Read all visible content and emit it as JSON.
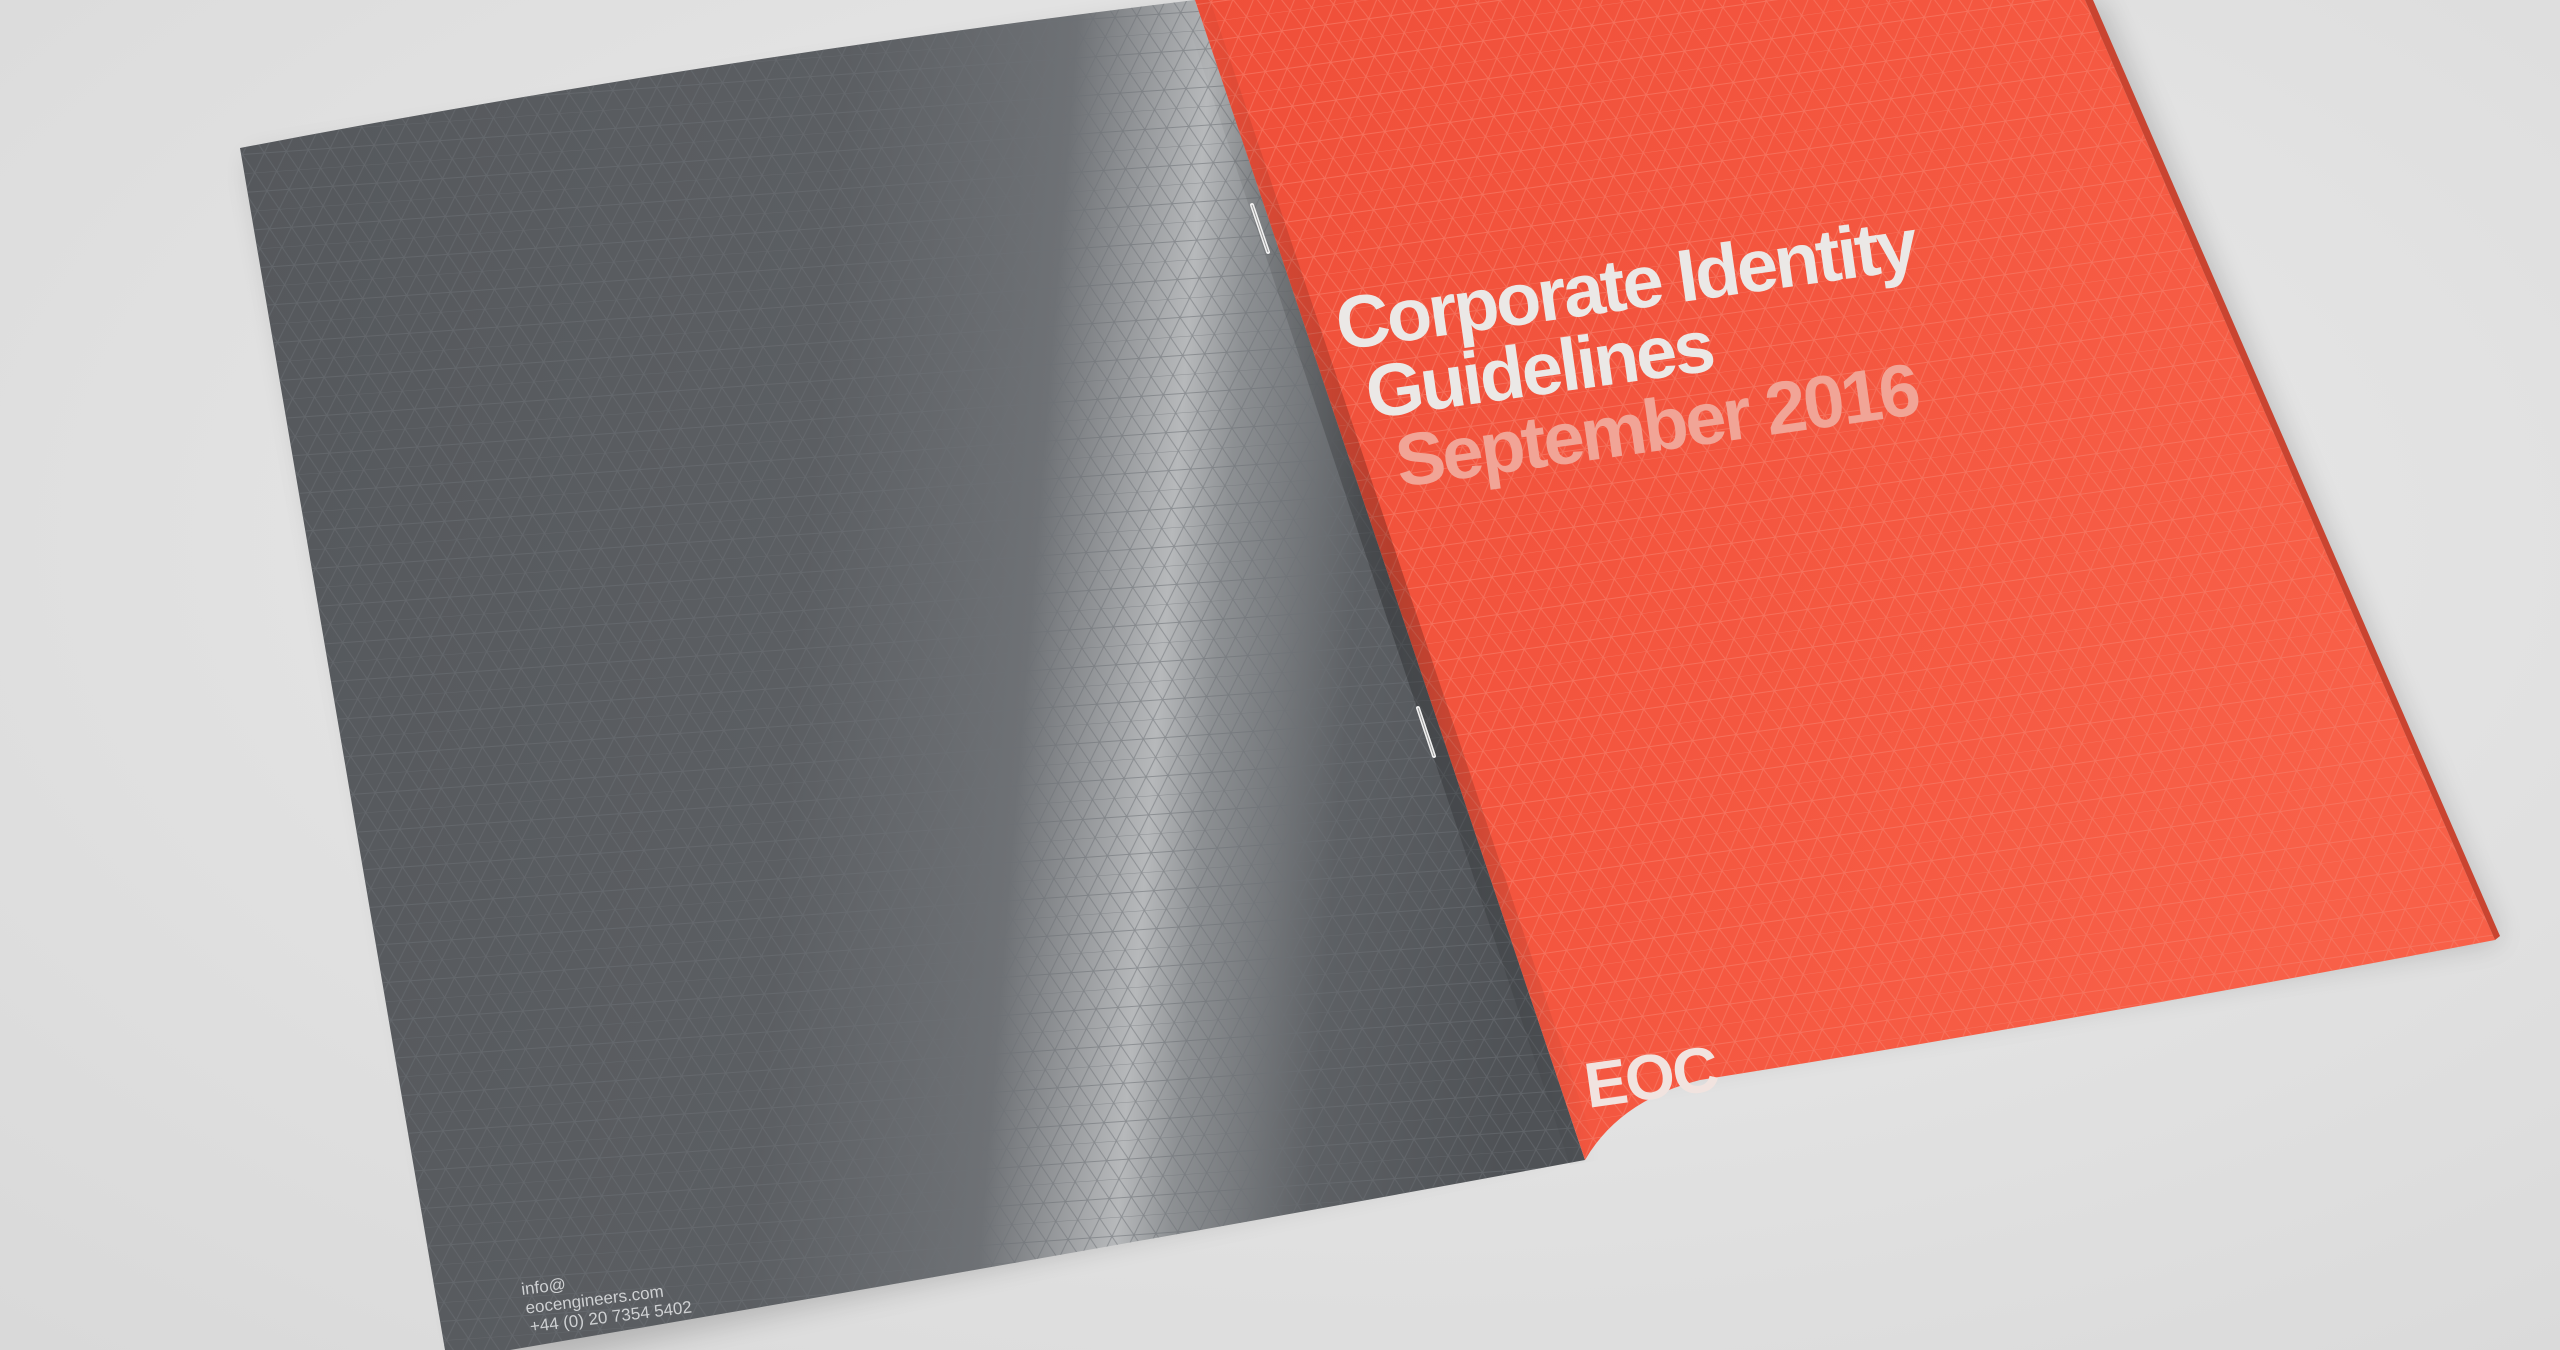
{
  "brochure": {
    "front_cover": {
      "title_line_1": "Corporate Identity",
      "title_line_2": "Guidelines",
      "date": "September 2016",
      "logo": "EOC",
      "color": "#f4563f"
    },
    "back_cover": {
      "contact_email": "info@",
      "contact_website": "eocengineers.com",
      "contact_phone": "+44 (0) 20 7354 5402",
      "color": "#54575b"
    }
  },
  "colors": {
    "background": "#e3e3e3",
    "cover_text": "#ebe8e6",
    "date_text": "#f1a496"
  }
}
